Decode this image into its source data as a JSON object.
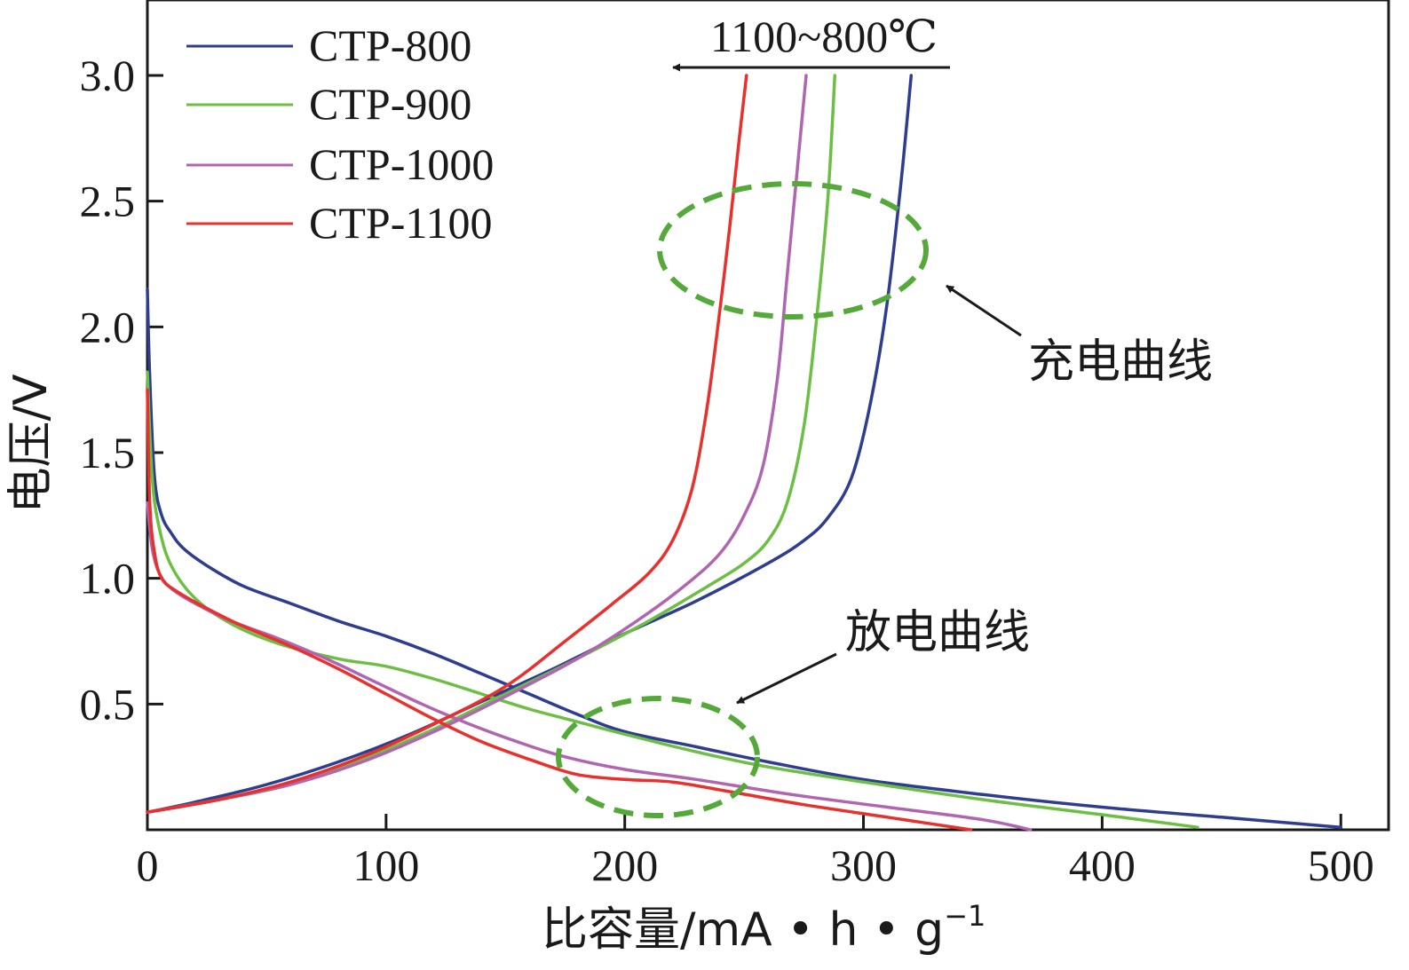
{
  "chart_data": {
    "type": "line",
    "xlabel": "比容量/mA • h • g",
    "xlabel_superscript": "−1",
    "ylabel": "电压/V",
    "xlim": [
      0,
      520
    ],
    "ylim": [
      0,
      3.3
    ],
    "x_ticks": [
      0,
      100,
      200,
      300,
      400,
      500
    ],
    "y_ticks": [
      0.5,
      1.0,
      1.5,
      2.0,
      2.5,
      3.0
    ],
    "y_tick_labels": [
      "0.5",
      "1.0",
      "1.5",
      "2.0",
      "2.5",
      "3.0"
    ],
    "x_tick_labels": [
      "0",
      "100",
      "200",
      "300",
      "400",
      "500"
    ],
    "legend_position": "top-left",
    "series": [
      {
        "name": "CTP-800",
        "color": "#2E3D8F",
        "discharge": [
          [
            0,
            2.15
          ],
          [
            1,
            1.8
          ],
          [
            3,
            1.4
          ],
          [
            6,
            1.25
          ],
          [
            10,
            1.18
          ],
          [
            15,
            1.12
          ],
          [
            25,
            1.05
          ],
          [
            40,
            0.97
          ],
          [
            60,
            0.9
          ],
          [
            80,
            0.83
          ],
          [
            100,
            0.77
          ],
          [
            120,
            0.7
          ],
          [
            140,
            0.62
          ],
          [
            160,
            0.54
          ],
          [
            180,
            0.46
          ],
          [
            200,
            0.39
          ],
          [
            230,
            0.33
          ],
          [
            260,
            0.27
          ],
          [
            300,
            0.2
          ],
          [
            350,
            0.14
          ],
          [
            400,
            0.09
          ],
          [
            450,
            0.05
          ],
          [
            500,
            0.01
          ]
        ],
        "charge": [
          [
            0,
            0.07
          ],
          [
            20,
            0.11
          ],
          [
            50,
            0.18
          ],
          [
            80,
            0.27
          ],
          [
            110,
            0.38
          ],
          [
            140,
            0.51
          ],
          [
            170,
            0.64
          ],
          [
            200,
            0.78
          ],
          [
            230,
            0.91
          ],
          [
            260,
            1.06
          ],
          [
            275,
            1.15
          ],
          [
            285,
            1.24
          ],
          [
            295,
            1.4
          ],
          [
            303,
            1.7
          ],
          [
            310,
            2.1
          ],
          [
            316,
            2.6
          ],
          [
            320,
            3.0
          ]
        ]
      },
      {
        "name": "CTP-900",
        "color": "#6DBE45",
        "discharge": [
          [
            0,
            1.82
          ],
          [
            2,
            1.4
          ],
          [
            5,
            1.2
          ],
          [
            10,
            1.05
          ],
          [
            20,
            0.92
          ],
          [
            35,
            0.82
          ],
          [
            55,
            0.74
          ],
          [
            80,
            0.68
          ],
          [
            100,
            0.65
          ],
          [
            120,
            0.6
          ],
          [
            140,
            0.54
          ],
          [
            160,
            0.48
          ],
          [
            180,
            0.43
          ],
          [
            200,
            0.38
          ],
          [
            230,
            0.31
          ],
          [
            260,
            0.25
          ],
          [
            300,
            0.19
          ],
          [
            350,
            0.12
          ],
          [
            400,
            0.06
          ],
          [
            440,
            0.01
          ]
        ],
        "charge": [
          [
            0,
            0.07
          ],
          [
            30,
            0.12
          ],
          [
            60,
            0.18
          ],
          [
            90,
            0.28
          ],
          [
            120,
            0.4
          ],
          [
            150,
            0.54
          ],
          [
            180,
            0.68
          ],
          [
            210,
            0.83
          ],
          [
            235,
            0.97
          ],
          [
            250,
            1.06
          ],
          [
            260,
            1.15
          ],
          [
            268,
            1.3
          ],
          [
            275,
            1.6
          ],
          [
            280,
            2.0
          ],
          [
            285,
            2.5
          ],
          [
            288,
            3.0
          ]
        ]
      },
      {
        "name": "CTP-1000",
        "color": "#B065B0",
        "discharge": [
          [
            0,
            1.3
          ],
          [
            2,
            1.12
          ],
          [
            5,
            1.02
          ],
          [
            10,
            0.96
          ],
          [
            20,
            0.9
          ],
          [
            35,
            0.83
          ],
          [
            55,
            0.76
          ],
          [
            75,
            0.68
          ],
          [
            95,
            0.59
          ],
          [
            115,
            0.5
          ],
          [
            135,
            0.42
          ],
          [
            155,
            0.35
          ],
          [
            175,
            0.29
          ],
          [
            200,
            0.24
          ],
          [
            230,
            0.2
          ],
          [
            270,
            0.14
          ],
          [
            310,
            0.09
          ],
          [
            350,
            0.04
          ],
          [
            370,
            0.0
          ]
        ],
        "charge": [
          [
            0,
            0.07
          ],
          [
            30,
            0.12
          ],
          [
            60,
            0.18
          ],
          [
            90,
            0.27
          ],
          [
            120,
            0.39
          ],
          [
            150,
            0.53
          ],
          [
            180,
            0.68
          ],
          [
            205,
            0.83
          ],
          [
            225,
            0.97
          ],
          [
            240,
            1.1
          ],
          [
            250,
            1.25
          ],
          [
            258,
            1.45
          ],
          [
            264,
            1.8
          ],
          [
            268,
            2.2
          ],
          [
            272,
            2.6
          ],
          [
            276,
            3.0
          ]
        ]
      },
      {
        "name": "CTP-1100",
        "color": "#E8302D",
        "discharge": [
          [
            0,
            1.75
          ],
          [
            1,
            1.3
          ],
          [
            3,
            1.1
          ],
          [
            6,
            1.0
          ],
          [
            12,
            0.95
          ],
          [
            25,
            0.88
          ],
          [
            40,
            0.81
          ],
          [
            60,
            0.73
          ],
          [
            80,
            0.64
          ],
          [
            100,
            0.54
          ],
          [
            120,
            0.44
          ],
          [
            140,
            0.35
          ],
          [
            160,
            0.28
          ],
          [
            180,
            0.22
          ],
          [
            200,
            0.2
          ],
          [
            220,
            0.19
          ],
          [
            245,
            0.15
          ],
          [
            275,
            0.1
          ],
          [
            310,
            0.05
          ],
          [
            345,
            0.0
          ]
        ],
        "charge": [
          [
            0,
            0.07
          ],
          [
            30,
            0.12
          ],
          [
            60,
            0.19
          ],
          [
            90,
            0.29
          ],
          [
            120,
            0.42
          ],
          [
            150,
            0.57
          ],
          [
            175,
            0.75
          ],
          [
            195,
            0.9
          ],
          [
            210,
            1.02
          ],
          [
            220,
            1.15
          ],
          [
            228,
            1.35
          ],
          [
            234,
            1.65
          ],
          [
            239,
            2.0
          ],
          [
            244,
            2.4
          ],
          [
            248,
            2.75
          ],
          [
            251,
            3.0
          ]
        ]
      }
    ],
    "annotations": {
      "charge_label": "充电曲线",
      "discharge_label": "放电曲线",
      "temperature_label": "1100~800℃"
    }
  }
}
